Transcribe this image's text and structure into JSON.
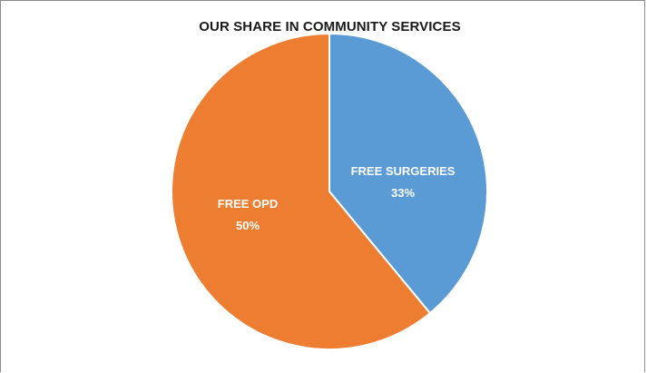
{
  "chart_data": {
    "type": "pie",
    "title": "OUR SHARE IN COMMUNITY SERVICES",
    "start_angle_deg": 0,
    "slices": [
      {
        "label": "FREE SURGERIES",
        "percent_label": "33%",
        "value": 39,
        "color": "#5b9bd5"
      },
      {
        "label": "FREE OPD",
        "percent_label": "50%",
        "value": 61,
        "color": "#ed7d31"
      }
    ],
    "legend": "none"
  }
}
